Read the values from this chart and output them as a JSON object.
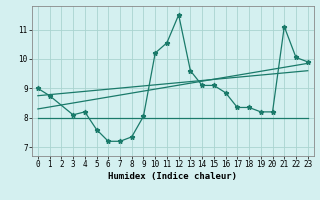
{
  "xlabel": "Humidex (Indice chaleur)",
  "bg_color": "#d4f0f0",
  "grid_color": "#aad4d0",
  "line_color": "#1a7a6a",
  "xlim": [
    -0.5,
    23.5
  ],
  "ylim": [
    6.7,
    11.8
  ],
  "yticks": [
    7,
    8,
    9,
    10,
    11
  ],
  "xticks": [
    0,
    1,
    2,
    3,
    4,
    5,
    6,
    7,
    8,
    9,
    10,
    11,
    12,
    13,
    14,
    15,
    16,
    17,
    18,
    19,
    20,
    21,
    22,
    23
  ],
  "series1_x": [
    0,
    1,
    3,
    4,
    5,
    6,
    7,
    8,
    9,
    10,
    11,
    12,
    13,
    14,
    15,
    16,
    17,
    18,
    19,
    20,
    21,
    22,
    23
  ],
  "series1_y": [
    9.0,
    8.75,
    8.1,
    8.2,
    7.6,
    7.2,
    7.2,
    7.35,
    8.05,
    10.2,
    10.55,
    11.5,
    9.6,
    9.1,
    9.1,
    8.85,
    8.35,
    8.35,
    8.2,
    8.2,
    11.1,
    10.05,
    9.9
  ],
  "series2_x": [
    0,
    23
  ],
  "series2_y": [
    8.0,
    8.0
  ],
  "series3_x": [
    0,
    23
  ],
  "series3_y": [
    8.3,
    9.85
  ],
  "series4_x": [
    0,
    23
  ],
  "series4_y": [
    8.75,
    9.6
  ],
  "xlabel_fontsize": 6.5,
  "tick_fontsize": 5.5
}
